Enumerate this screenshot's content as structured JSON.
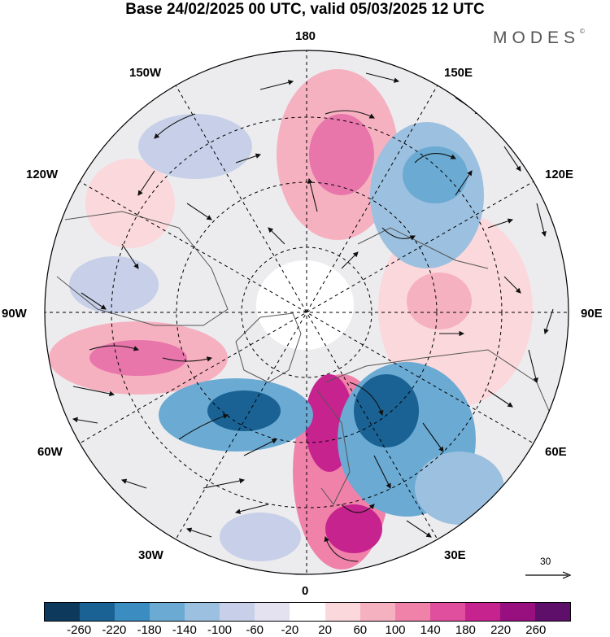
{
  "title": "Base 24/02/2025 00 UTC, valid 05/03/2025 12 UTC",
  "brand": "MODES",
  "brand_mark": "©",
  "map": {
    "projection": "north polar stereographic",
    "longitude_labels": [
      "180",
      "150E",
      "120E",
      "90E",
      "60E",
      "30E",
      "0",
      "30W",
      "60W",
      "90W",
      "120W",
      "150W"
    ],
    "vector_reference": "30"
  },
  "colorbar": {
    "colors": [
      "#0d3a5c",
      "#1a6294",
      "#3b8cc0",
      "#6aaad3",
      "#9cc0df",
      "#c7d0e8",
      "#e4e2f1",
      "#ffffff",
      "#fbd8dc",
      "#f6b1c1",
      "#f082aa",
      "#e04f9d",
      "#c7238f",
      "#98107f",
      "#5e0f6a"
    ],
    "labels": [
      "-260",
      "-220",
      "-180",
      "-140",
      "-100",
      "-60",
      "-20",
      "20",
      "60",
      "100",
      "140",
      "180",
      "220",
      "260"
    ]
  },
  "colors": {
    "gridline": "#000000",
    "land_outline": "#555555",
    "arrow": "#111111"
  }
}
